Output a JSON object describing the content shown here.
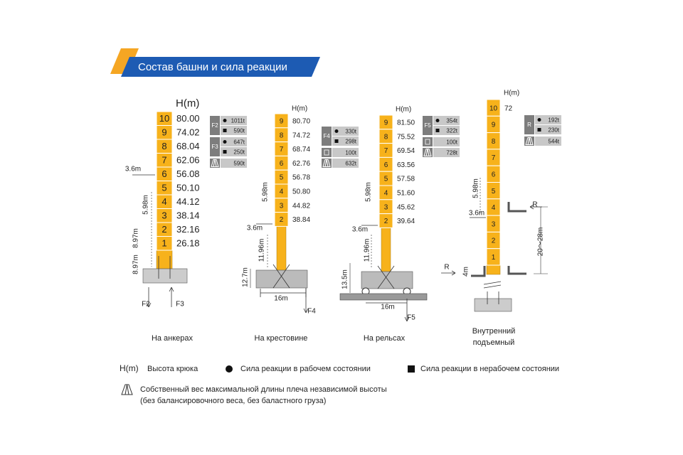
{
  "title": "Состав башни и сила реакции",
  "towers": [
    {
      "hm": "H(m)",
      "sections": [
        "10",
        "9",
        "8",
        "7",
        "6",
        "5",
        "4",
        "3",
        "2",
        "1"
      ],
      "heights": [
        "80.00",
        "74.02",
        "68.04",
        "62.06",
        "56.08",
        "50.10",
        "44.12",
        "38.14",
        "32.16",
        "26.18"
      ],
      "dims": [
        "3.6m",
        "5.98m",
        "8.97m",
        "8.97m"
      ],
      "forces": [
        "F2",
        "F3"
      ],
      "reactions": [
        {
          "label": "F2",
          "working": "1011t",
          "idle": "590t"
        },
        {
          "label": "F3",
          "working": "647t",
          "idle": "250t"
        }
      ],
      "self_weight": "590t",
      "caption_lines": [
        "На анкерах"
      ]
    },
    {
      "hm": "H(m)",
      "sections": [
        "9",
        "8",
        "7",
        "6",
        "5",
        "4",
        "3",
        "2"
      ],
      "heights": [
        "80.70",
        "74.72",
        "68.74",
        "62.76",
        "56.78",
        "50.80",
        "44.82",
        "38.84"
      ],
      "dims": [
        "5.98m",
        "3.6m",
        "11.96m",
        "12.7m",
        "16m"
      ],
      "forces": [
        "F4"
      ],
      "reactions": [
        {
          "label": "F4",
          "working": "330t",
          "idle": "298t"
        }
      ],
      "ballast": "100t",
      "self_weight": "632t",
      "caption_lines": [
        "На крестовине"
      ]
    },
    {
      "hm": "H(m)",
      "sections": [
        "9",
        "8",
        "7",
        "6",
        "5",
        "4",
        "3",
        "2"
      ],
      "heights": [
        "81.50",
        "75.52",
        "69.54",
        "63.56",
        "57.58",
        "51.60",
        "45.62",
        "39.64"
      ],
      "dims": [
        "5.98m",
        "3.6m",
        "11.96m",
        "13.5m",
        "16m"
      ],
      "forces": [
        "F5"
      ],
      "reactions": [
        {
          "label": "F5",
          "working": "354t",
          "idle": "322t"
        }
      ],
      "ballast": "100t",
      "self_weight": "728t",
      "caption_lines": [
        "На рельсах"
      ]
    },
    {
      "hm": "H(m)",
      "sections": [
        "10",
        "9",
        "8",
        "7",
        "6",
        "5",
        "4",
        "3",
        "2",
        "1"
      ],
      "heights": [
        "72"
      ],
      "dims": [
        "5.98m",
        "3.6m",
        "20～28m",
        "4m"
      ],
      "forces": [
        "R",
        "R"
      ],
      "reactions": [
        {
          "label": "R",
          "working": "192t",
          "idle": "230t"
        }
      ],
      "self_weight": "544t",
      "caption_lines": [
        "Внутренний",
        "подъемный"
      ]
    }
  ],
  "legend": {
    "hm": "H(m)",
    "hm_text": "Высота крюка",
    "working": "Сила реакции в рабочем состоянии",
    "idle": "Сила реакции в нерабочем состоянии",
    "self_weight": [
      "Собственный вес максимальной длины плеча независимой высоты",
      "(без балансировочного веса, без баластного груза)"
    ]
  }
}
